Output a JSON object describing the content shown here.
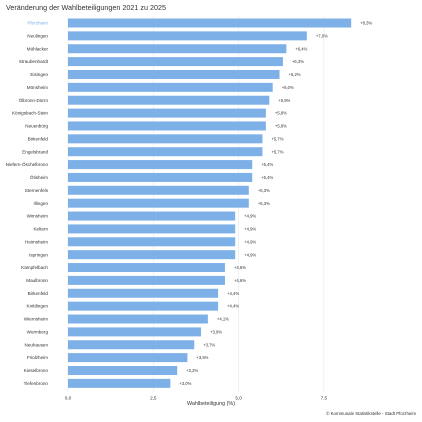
{
  "chart_data": {
    "type": "bar",
    "orientation": "horizontal",
    "title": "Veränderung der Wahlbeteiligungen 2021 zu 2025",
    "xlabel": "Wahlbeteiligung (%)",
    "ylabel": "",
    "xlim": [
      0,
      10.2
    ],
    "x_ticks": [
      0.0,
      2.5,
      5.0,
      7.5
    ],
    "x_tick_labels": [
      "0,0",
      "2,5",
      "5,0",
      "7,5"
    ],
    "grid": true,
    "legend": "none",
    "categories": [
      "Pforzheim",
      "Neulingen",
      "Mühlacker",
      "Straubenhardt",
      "Eisingen",
      "Mönsheim",
      "Ölbronn-Dürrn",
      "Königsbach-Stein",
      "Neuenbürg",
      "Birkenfeld",
      "Engelsbrand",
      "Niefern-Öschelbronn",
      "Ötisheim",
      "Sternenfels",
      "Illingen",
      "Wimsheim",
      "Keltern",
      "Heimsheim",
      "Ispringen",
      "Kämpfelbach",
      "Maulbronn",
      "Birkenfeld",
      "Knittlingen",
      "Wiernsheim",
      "Wurmberg",
      "Neuhausen",
      "Friolzheim",
      "Kieselbronn",
      "Tiefenbronn"
    ],
    "values": [
      8.3,
      7.0,
      6.4,
      6.3,
      6.2,
      6.0,
      5.9,
      5.8,
      5.8,
      5.7,
      5.7,
      5.4,
      5.4,
      5.3,
      5.3,
      4.9,
      4.9,
      4.9,
      4.9,
      4.6,
      4.6,
      4.4,
      4.4,
      4.1,
      3.9,
      3.7,
      3.5,
      3.2,
      3.0
    ],
    "value_labels": [
      "+8,3%",
      "+7,0%",
      "+6,4%",
      "+6,3%",
      "+6,2%",
      "+6,0%",
      "+5,9%",
      "+5,8%",
      "+5,8%",
      "+5,7%",
      "+5,7%",
      "+5,4%",
      "+5,4%",
      "+5,3%",
      "+5,3%",
      "+4,9%",
      "+4,9%",
      "+4,9%",
      "+4,9%",
      "+4,6%",
      "+4,6%",
      "+4,4%",
      "+4,4%",
      "+4,1%",
      "+3,9%",
      "+3,7%",
      "+3,5%",
      "+3,2%",
      "+3,0%"
    ],
    "highlight_category": "Pforzheim",
    "colors": {
      "bar": "#7eb0e8",
      "highlight_label": "#7eb0e8",
      "grid": "#e6e6e6",
      "label": "#333333"
    }
  },
  "source": "© Kommunale Statistikstelle - Stadt Pforzheim"
}
